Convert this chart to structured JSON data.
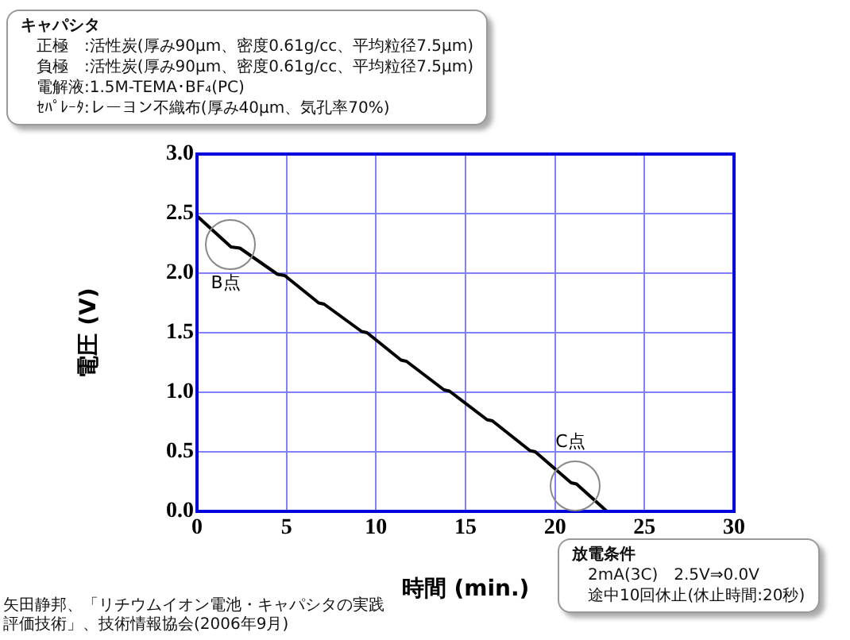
{
  "chart_data": {
    "type": "line",
    "xlabel": "時間 (min.)",
    "ylabel": "電圧 (V)",
    "xlim": [
      0,
      30
    ],
    "xticks": [
      0,
      5,
      10,
      15,
      20,
      25,
      30
    ],
    "ylim": [
      0,
      3
    ],
    "yticks": [
      {
        "value": 0,
        "label": "0.0"
      },
      {
        "value": 0.5,
        "label": "0.5"
      },
      {
        "value": 1,
        "label": "1.0"
      },
      {
        "value": 1.5,
        "label": "1.5"
      },
      {
        "value": 2,
        "label": "2.0"
      },
      {
        "value": 2.5,
        "label": "2.5"
      },
      {
        "value": 3,
        "label": "3.0"
      }
    ],
    "grid": true,
    "legend": false,
    "marker": "none",
    "line_style": "solid",
    "series": [
      {
        "color": "#000000",
        "x": [
          0,
          1.9,
          2.4,
          4.5,
          4.9,
          6.8,
          7.1,
          9.2,
          9.5,
          11.4,
          11.7,
          13.8,
          14.1,
          16.2,
          16.5,
          18.6,
          18.9,
          20.9,
          21.2,
          22.9,
          23.2
        ],
        "values": [
          2.48,
          2.22,
          2.21,
          1.99,
          1.98,
          1.75,
          1.74,
          1.51,
          1.5,
          1.27,
          1.26,
          1.02,
          1.01,
          0.77,
          0.76,
          0.51,
          0.5,
          0.24,
          0.23,
          0,
          0
        ]
      }
    ],
    "annotations": [
      "キャパシタ",
      "正極　:活性炭(厚み90μm、密度0.61g/cc、平均粒径7.5μm)",
      "負極　:活性炭(厚み90μm、密度0.61g/cc、平均粒径7.5μm)",
      "電解液:1.5M-TEMA･BF₄(PC)",
      "ｾﾊﾟﾚｰﾀ:レーヨン不織布(厚み40μm、気孔率70%)",
      "放電条件",
      "2mA(3C)　2.5V⇒0.0V",
      "途中10回休止(休止時間:20秒)",
      "矢田静邦、「リチウムイオン電池・キャパシタの実践評価技術」、技術情報協会(2006年9月)",
      "B点",
      "C点"
    ]
  }
}
